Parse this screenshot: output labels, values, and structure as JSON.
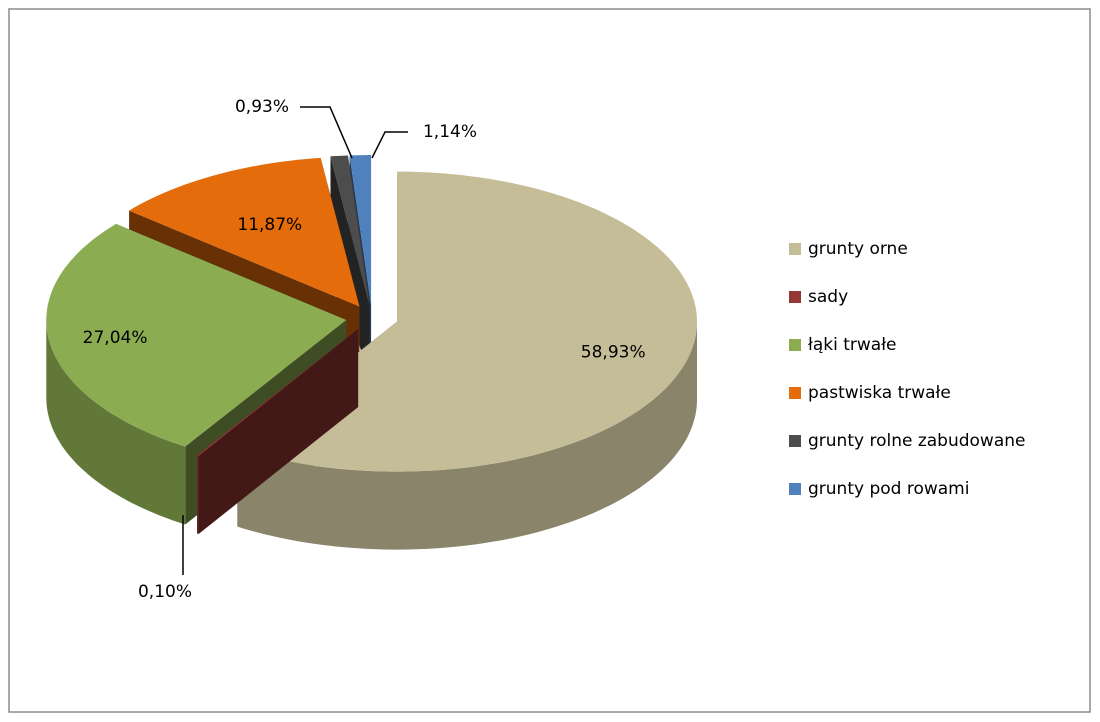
{
  "chart_data": {
    "type": "pie3d",
    "categories": [
      "grunty orne",
      "sady",
      "łąki trwałe",
      "pastwiska trwałe",
      "grunty rolne zabudowane",
      "grunty pod rowami"
    ],
    "values": [
      58.93,
      0.1,
      27.04,
      11.87,
      0.93,
      1.14
    ],
    "value_labels": [
      "58,93%",
      "0,10%",
      "27,04%",
      "11,87%",
      "0,93%",
      "1,14%"
    ],
    "colors": [
      "#c4bd97",
      "#953735",
      "#8cac52",
      "#e46c0a",
      "#4d4d4d",
      "#4f81bd"
    ],
    "legend": "right"
  }
}
